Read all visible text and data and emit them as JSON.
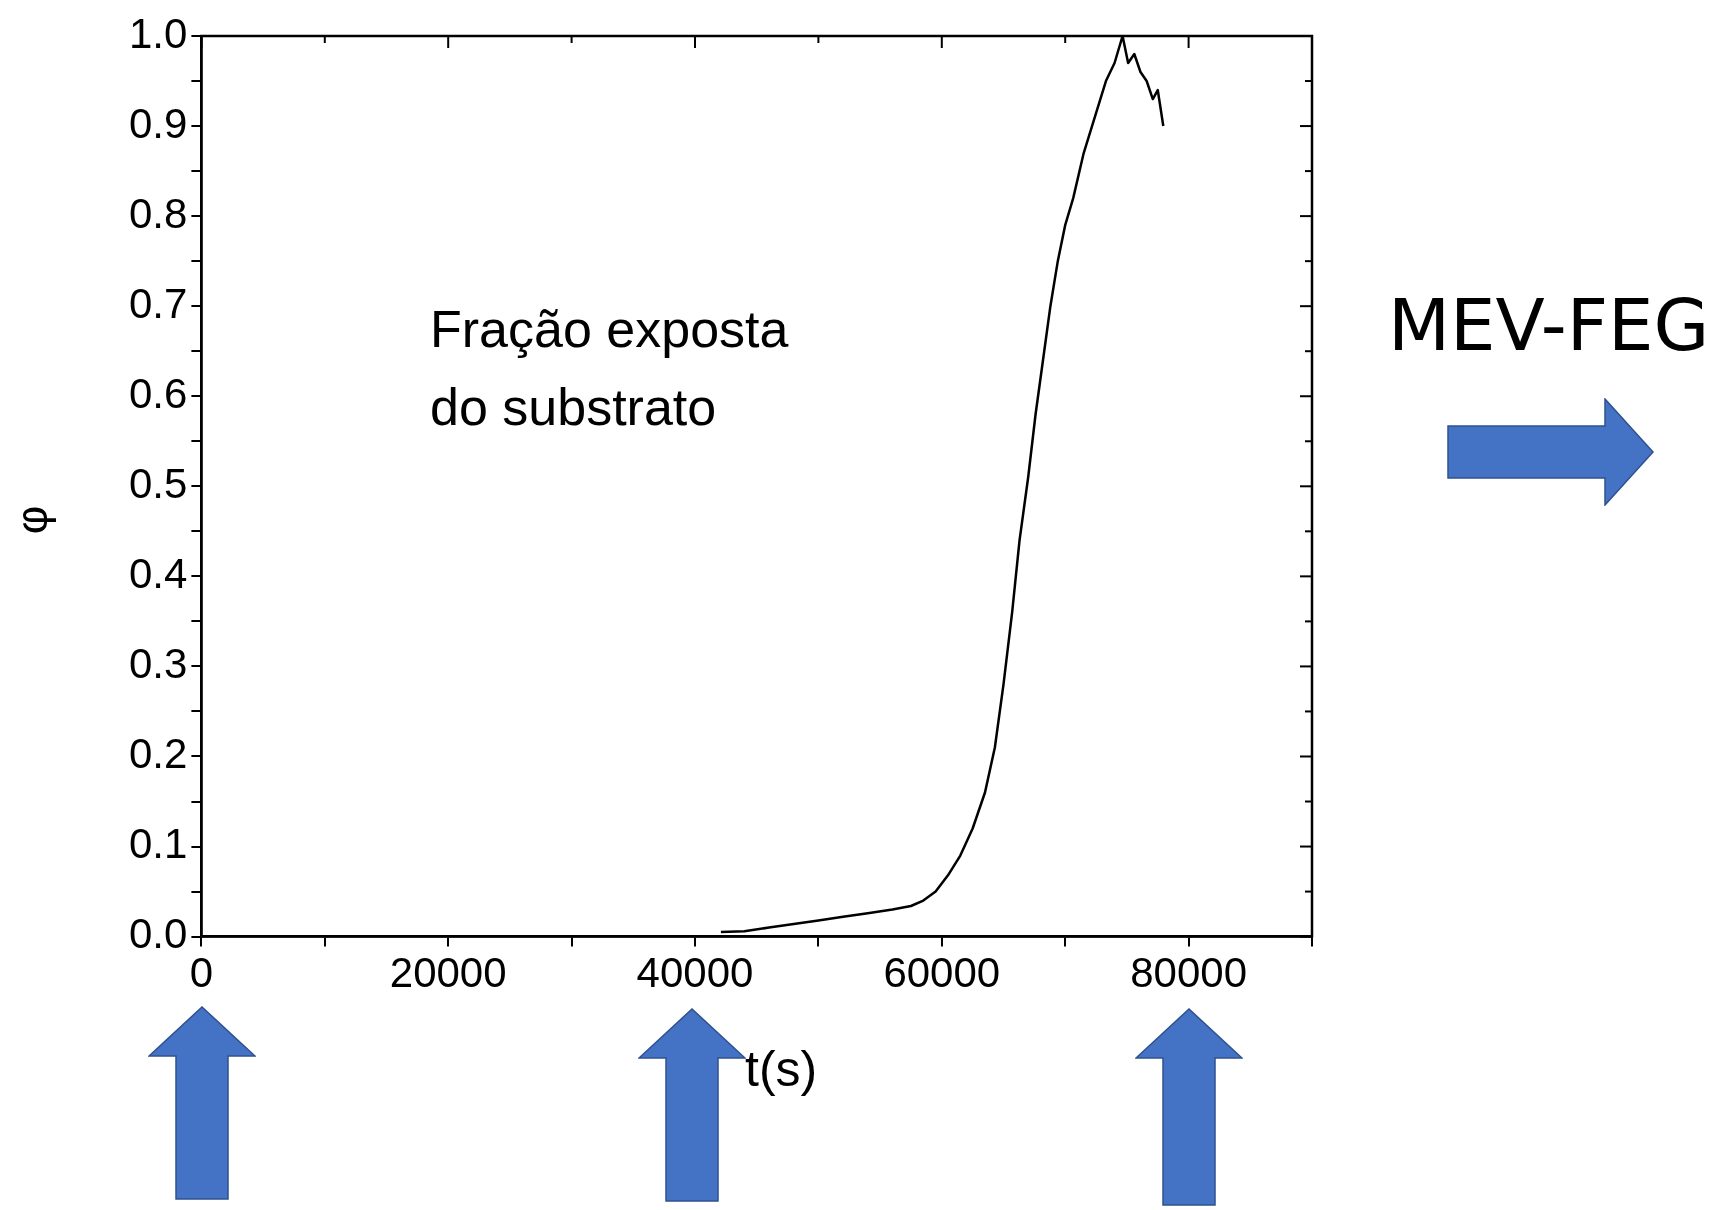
{
  "chart_data": {
    "type": "line",
    "xlabel": "t(s)",
    "ylabel": "φ",
    "annotations": [
      "Fração exposta\ndo substrato",
      "MEV-FEG"
    ],
    "xlim": [
      0,
      90000
    ],
    "ylim": [
      0,
      1
    ],
    "xticks": [
      0,
      {
        "value": 10000,
        "label": null
      },
      20000,
      {
        "value": 30000,
        "label": null
      },
      40000,
      {
        "value": 50000,
        "label": null
      },
      60000,
      {
        "value": 70000,
        "label": null
      },
      80000,
      {
        "value": 90000,
        "label": null
      }
    ],
    "yticks": [
      {
        "value": 0,
        "label": "0.0"
      },
      {
        "value": 0.05,
        "label": null
      },
      {
        "value": 0.1,
        "label": "0.1"
      },
      {
        "value": 0.15,
        "label": null
      },
      {
        "value": 0.2,
        "label": "0.2"
      },
      {
        "value": 0.25,
        "label": null
      },
      {
        "value": 0.3,
        "label": "0.3"
      },
      {
        "value": 0.35,
        "label": null
      },
      {
        "value": 0.4,
        "label": "0.4"
      },
      {
        "value": 0.45,
        "label": null
      },
      {
        "value": 0.5,
        "label": "0.5"
      },
      {
        "value": 0.55,
        "label": null
      },
      {
        "value": 0.6,
        "label": "0.6"
      },
      {
        "value": 0.65,
        "label": null
      },
      {
        "value": 0.7,
        "label": "0.7"
      },
      {
        "value": 0.75,
        "label": null
      },
      {
        "value": 0.8,
        "label": "0.8"
      },
      {
        "value": 0.85,
        "label": null
      },
      {
        "value": 0.9,
        "label": "0.9"
      },
      {
        "value": 0.95,
        "label": null
      },
      {
        "value": 1,
        "label": "1.0"
      }
    ],
    "grid": false,
    "legend": false,
    "marker": "none",
    "line_style": "solid",
    "series": [
      {
        "color": "#000000",
        "x": [
          42100,
          44000,
          46000,
          48000,
          50000,
          52000,
          54000,
          56000,
          57500,
          58500,
          59500,
          60500,
          61500,
          62500,
          63500,
          64300,
          65000,
          65700,
          66300,
          67000,
          67600,
          68200,
          68800,
          69400,
          70000,
          70650,
          71500,
          72400,
          73300,
          74000,
          74650,
          75100,
          75600,
          76100,
          76600,
          77100,
          77500,
          77950
        ],
        "values": [
          0.005,
          0.006,
          0.01,
          0.014,
          0.018,
          0.022,
          0.026,
          0.03,
          0.034,
          0.04,
          0.05,
          0.068,
          0.09,
          0.12,
          0.16,
          0.21,
          0.28,
          0.36,
          0.44,
          0.51,
          0.58,
          0.64,
          0.7,
          0.75,
          0.79,
          0.82,
          0.87,
          0.91,
          0.95,
          0.97,
          1.0,
          0.97,
          0.98,
          0.96,
          0.95,
          0.93,
          0.94,
          0.9
        ]
      }
    ]
  }
}
